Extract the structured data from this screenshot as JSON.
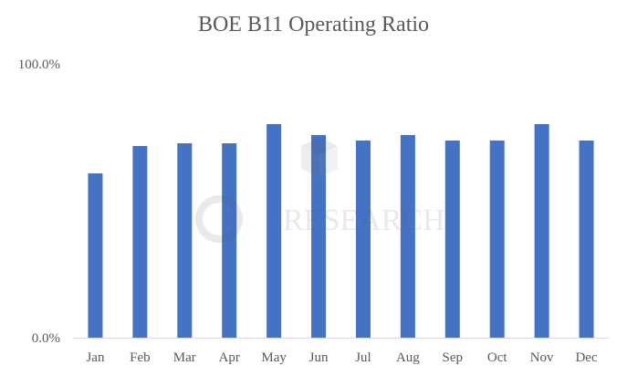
{
  "chart_data": {
    "type": "bar",
    "title": "BOE B11 Operating Ratio",
    "categories": [
      "Jan",
      "Feb",
      "Mar",
      "Apr",
      "May",
      "Jun",
      "Jul",
      "Aug",
      "Sep",
      "Oct",
      "Nov",
      "Dec"
    ],
    "series": [
      {
        "values": [
          60,
          70,
          71,
          71,
          78,
          74,
          72,
          74,
          72,
          72,
          78,
          72
        ]
      }
    ],
    "ylim": [
      0,
      100
    ],
    "yticks": [
      "0.0%",
      "100.0%"
    ],
    "grid": false,
    "legend": "none",
    "bar_color": "#4472C4",
    "axis_color": "#D9D9D9"
  },
  "watermark": {
    "text": "RESEARCH"
  }
}
